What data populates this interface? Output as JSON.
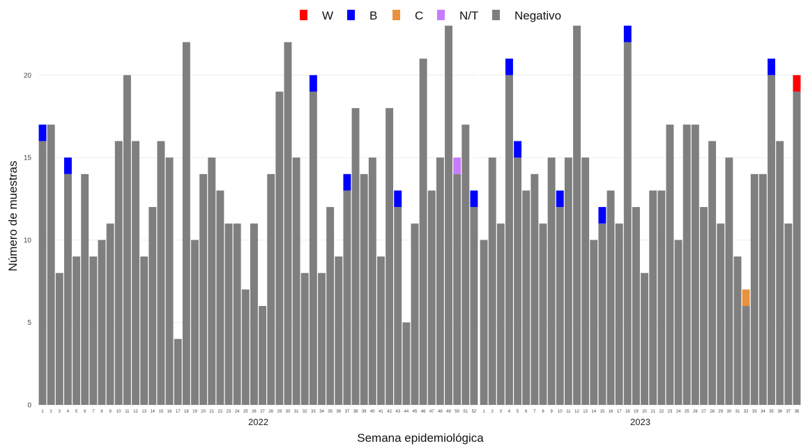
{
  "chart_data": {
    "type": "bar",
    "stacked": true,
    "xlabel": "Semana epidemiológica",
    "ylabel": "Número de muestras",
    "ylim": [
      0,
      23
    ],
    "yticks": [
      0,
      5,
      10,
      15,
      20
    ],
    "grid": true,
    "legend_position": "top",
    "legend": [
      {
        "name": "W",
        "color": "#ff0000"
      },
      {
        "name": "B",
        "color": "#0000ff"
      },
      {
        "name": "C",
        "color": "#e8913e"
      },
      {
        "name": "N/T",
        "color": "#c77cff"
      },
      {
        "name": "Negativo",
        "color": "#7f7f7f"
      }
    ],
    "panels": [
      {
        "label": "2022",
        "weeks": [
          1,
          2,
          3,
          4,
          5,
          6,
          7,
          8,
          9,
          10,
          11,
          12,
          13,
          14,
          15,
          16,
          17,
          18,
          19,
          20,
          21,
          22,
          23,
          24,
          25,
          26,
          27,
          28,
          29,
          30,
          31,
          32,
          33,
          34,
          35,
          36,
          37,
          38,
          39,
          40,
          41,
          42,
          43,
          44,
          45,
          46,
          47,
          48,
          49,
          50,
          51,
          52
        ],
        "series": [
          {
            "name": "Negativo",
            "values": [
              16,
              17,
              8,
              14,
              9,
              14,
              9,
              10,
              11,
              16,
              20,
              16,
              9,
              12,
              16,
              15,
              4,
              22,
              10,
              14,
              15,
              13,
              11,
              11,
              7,
              11,
              6,
              14,
              19,
              22,
              15,
              8,
              19,
              8,
              12,
              9,
              13,
              18,
              14,
              15,
              9,
              18,
              12,
              5,
              11,
              21,
              13,
              15,
              23,
              14,
              17,
              12
            ]
          },
          {
            "name": "B",
            "values": [
              1,
              0,
              0,
              1,
              0,
              0,
              0,
              0,
              0,
              0,
              0,
              0,
              0,
              0,
              0,
              0,
              0,
              0,
              0,
              0,
              0,
              0,
              0,
              0,
              0,
              0,
              0,
              0,
              0,
              0,
              0,
              0,
              1,
              0,
              0,
              0,
              1,
              0,
              0,
              0,
              0,
              0,
              1,
              0,
              0,
              0,
              0,
              0,
              0,
              0,
              0,
              1
            ]
          },
          {
            "name": "N/T",
            "values": [
              0,
              0,
              0,
              0,
              0,
              0,
              0,
              0,
              0,
              0,
              0,
              0,
              0,
              0,
              0,
              0,
              0,
              0,
              0,
              0,
              0,
              0,
              0,
              0,
              0,
              0,
              0,
              0,
              0,
              0,
              0,
              0,
              0,
              0,
              0,
              0,
              0,
              0,
              0,
              0,
              0,
              0,
              0,
              0,
              0,
              0,
              0,
              0,
              0,
              1,
              0,
              0
            ]
          }
        ]
      },
      {
        "label": "2023",
        "weeks": [
          1,
          2,
          3,
          4,
          5,
          6,
          7,
          8,
          9,
          10,
          11,
          12,
          13,
          14,
          15,
          16,
          17,
          18,
          19,
          20,
          21,
          22,
          23,
          24,
          25,
          26,
          27,
          28,
          29,
          30,
          31,
          32,
          33,
          34,
          35,
          36,
          37,
          38
        ],
        "series": [
          {
            "name": "Negativo",
            "values": [
              10,
              15,
              11,
              20,
              15,
              13,
              14,
              11,
              15,
              12,
              15,
              23,
              15,
              10,
              11,
              13,
              11,
              22,
              12,
              8,
              13,
              13,
              17,
              10,
              17,
              17,
              12,
              16,
              11,
              15,
              9,
              6,
              14,
              14,
              20,
              16,
              11,
              19
            ]
          },
          {
            "name": "B",
            "values": [
              0,
              0,
              0,
              1,
              1,
              0,
              0,
              0,
              0,
              1,
              0,
              0,
              0,
              0,
              1,
              0,
              0,
              1,
              0,
              0,
              0,
              0,
              0,
              0,
              0,
              0,
              0,
              0,
              0,
              0,
              0,
              0,
              0,
              0,
              1,
              0,
              0,
              0
            ]
          },
          {
            "name": "C",
            "values": [
              0,
              0,
              0,
              0,
              0,
              0,
              0,
              0,
              0,
              0,
              0,
              0,
              0,
              0,
              0,
              0,
              0,
              0,
              0,
              0,
              0,
              0,
              0,
              0,
              0,
              0,
              0,
              0,
              0,
              0,
              0,
              1,
              0,
              0,
              0,
              0,
              0,
              0
            ]
          },
          {
            "name": "W",
            "values": [
              0,
              0,
              0,
              0,
              0,
              0,
              0,
              0,
              0,
              0,
              0,
              0,
              0,
              0,
              0,
              0,
              0,
              0,
              0,
              0,
              0,
              0,
              0,
              0,
              0,
              0,
              0,
              0,
              0,
              0,
              0,
              0,
              0,
              0,
              0,
              0,
              0,
              1
            ]
          }
        ]
      }
    ]
  }
}
